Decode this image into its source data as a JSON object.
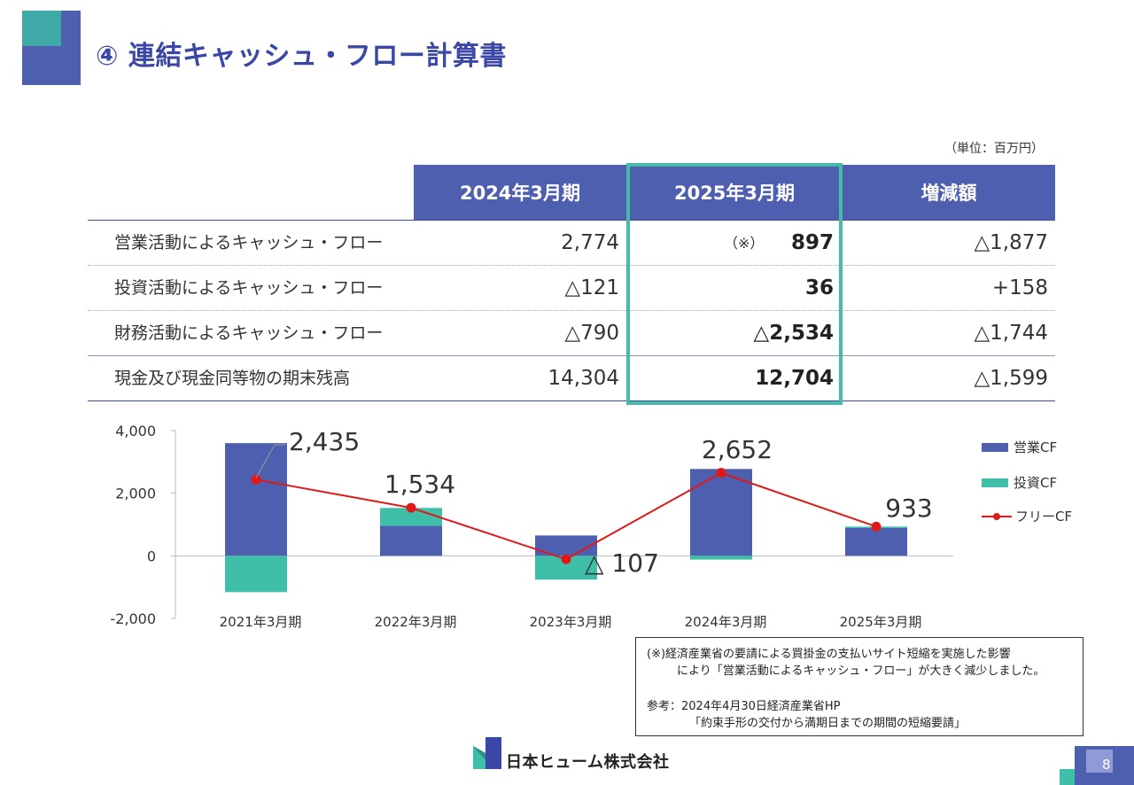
{
  "title": "④ 連結キャッシュ・フロー計算書",
  "unit": "（単位：百万円）",
  "table": {
    "headers": [
      "2024年3月期",
      "2025年3月期",
      "増減額"
    ],
    "rows": [
      {
        "label": "営業活動によるキャッシュ・フロー",
        "fy2024": "2,774",
        "fy2025": "897",
        "change": "△1,877",
        "note": "（※）"
      },
      {
        "label": "投資活動によるキャッシュ・フロー",
        "fy2024": "△121",
        "fy2025": "36",
        "change": "+158"
      },
      {
        "label": "財務活動によるキャッシュ・フロー",
        "fy2024": "△790",
        "fy2025": "△2,534",
        "change": "△1,744"
      },
      {
        "label": "現金及び現金同等物の期末残高",
        "fy2024": "14,304",
        "fy2025": "12,704",
        "change": "△1,599"
      }
    ]
  },
  "chart_data": {
    "type": "bar",
    "stacked": true,
    "categories": [
      "2021年3月期",
      "2022年3月期",
      "2023年3月期",
      "2024年3月期",
      "2025年3月期"
    ],
    "series": [
      {
        "name": "営業CF",
        "kind": "bar",
        "color": "#4f5fb0",
        "values": [
          3600,
          960,
          650,
          2774,
          897
        ]
      },
      {
        "name": "投資CF",
        "kind": "bar",
        "color": "#3fbfa8",
        "values": [
          -1160,
          570,
          -760,
          -121,
          36
        ]
      },
      {
        "name": "フリーCF",
        "kind": "line",
        "color": "#e01818",
        "values": [
          2435,
          1534,
          -107,
          2652,
          933
        ]
      }
    ],
    "free_cf_labels": [
      "2,435",
      "1,534",
      "△ 107",
      "2,652",
      "933"
    ],
    "yticks": [
      "4,000",
      "2,000",
      "0",
      "-2,000"
    ],
    "ylim": [
      -2000,
      4000
    ],
    "legend_position": "right"
  },
  "notes": {
    "line1": "(※)経済産業省の要請による買掛金の支払いサイト短縮を実施した影響",
    "line2": "により「営業活動によるキャッシュ・フロー」が大きく減少しました。",
    "line3": "参考：2024年4月30日経済産業省HP",
    "line4": "「約束手形の交付から満期日までの期間の短縮要請」"
  },
  "footer": {
    "company": "日本ヒューム株式会社",
    "page": "8"
  },
  "colors": {
    "navy": "#4f5fb0",
    "teal": "#3fbfa8",
    "red": "#e01818",
    "title": "#3a47a6"
  }
}
